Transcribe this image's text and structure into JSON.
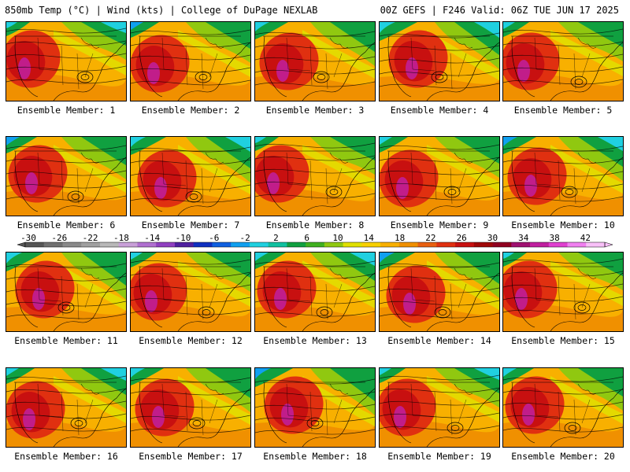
{
  "header": {
    "left": "850mb Temp (°C) | Wind (kts) | College of DuPage NEXLAB",
    "right": "00Z GEFS | F246 Valid: 06Z TUE JUN 17 2025"
  },
  "panel_label_prefix": "Ensemble Member: ",
  "members": [
    1,
    2,
    3,
    4,
    5,
    6,
    7,
    8,
    9,
    10,
    11,
    12,
    13,
    14,
    15,
    16,
    17,
    18,
    19,
    20
  ],
  "colorbar": {
    "labels": [
      "-30",
      "-26",
      "-22",
      "-18",
      "-14",
      "-10",
      "-6",
      "-2",
      "2",
      "6",
      "10",
      "14",
      "18",
      "22",
      "26",
      "30",
      "34",
      "38",
      "42"
    ],
    "colors": [
      "#555555",
      "#707070",
      "#8a8a8a",
      "#a0a0a0",
      "#b8b8b8",
      "#c8a0d8",
      "#b070d0",
      "#9040c0",
      "#5020a0",
      "#1030c0",
      "#1060e0",
      "#10a0f0",
      "#20d0e0",
      "#10c0a0",
      "#10a040",
      "#40b020",
      "#90c810",
      "#e0e000",
      "#f8d000",
      "#f8b000",
      "#f09000",
      "#e86010",
      "#e03010",
      "#c81010",
      "#a00808",
      "#900020",
      "#a01070",
      "#c020a0",
      "#e040d0",
      "#f080f0",
      "#f8c0f8"
    ]
  },
  "palette": {
    "cold_blue": "#10a0f0",
    "cyan": "#20d0e0",
    "green": "#10a040",
    "yellow_green": "#90c810",
    "yellow": "#e0e000",
    "orange": "#f8b000",
    "dark_orange": "#f09000",
    "red": "#e03010",
    "dark_red": "#c81010",
    "magenta": "#c020a0"
  }
}
